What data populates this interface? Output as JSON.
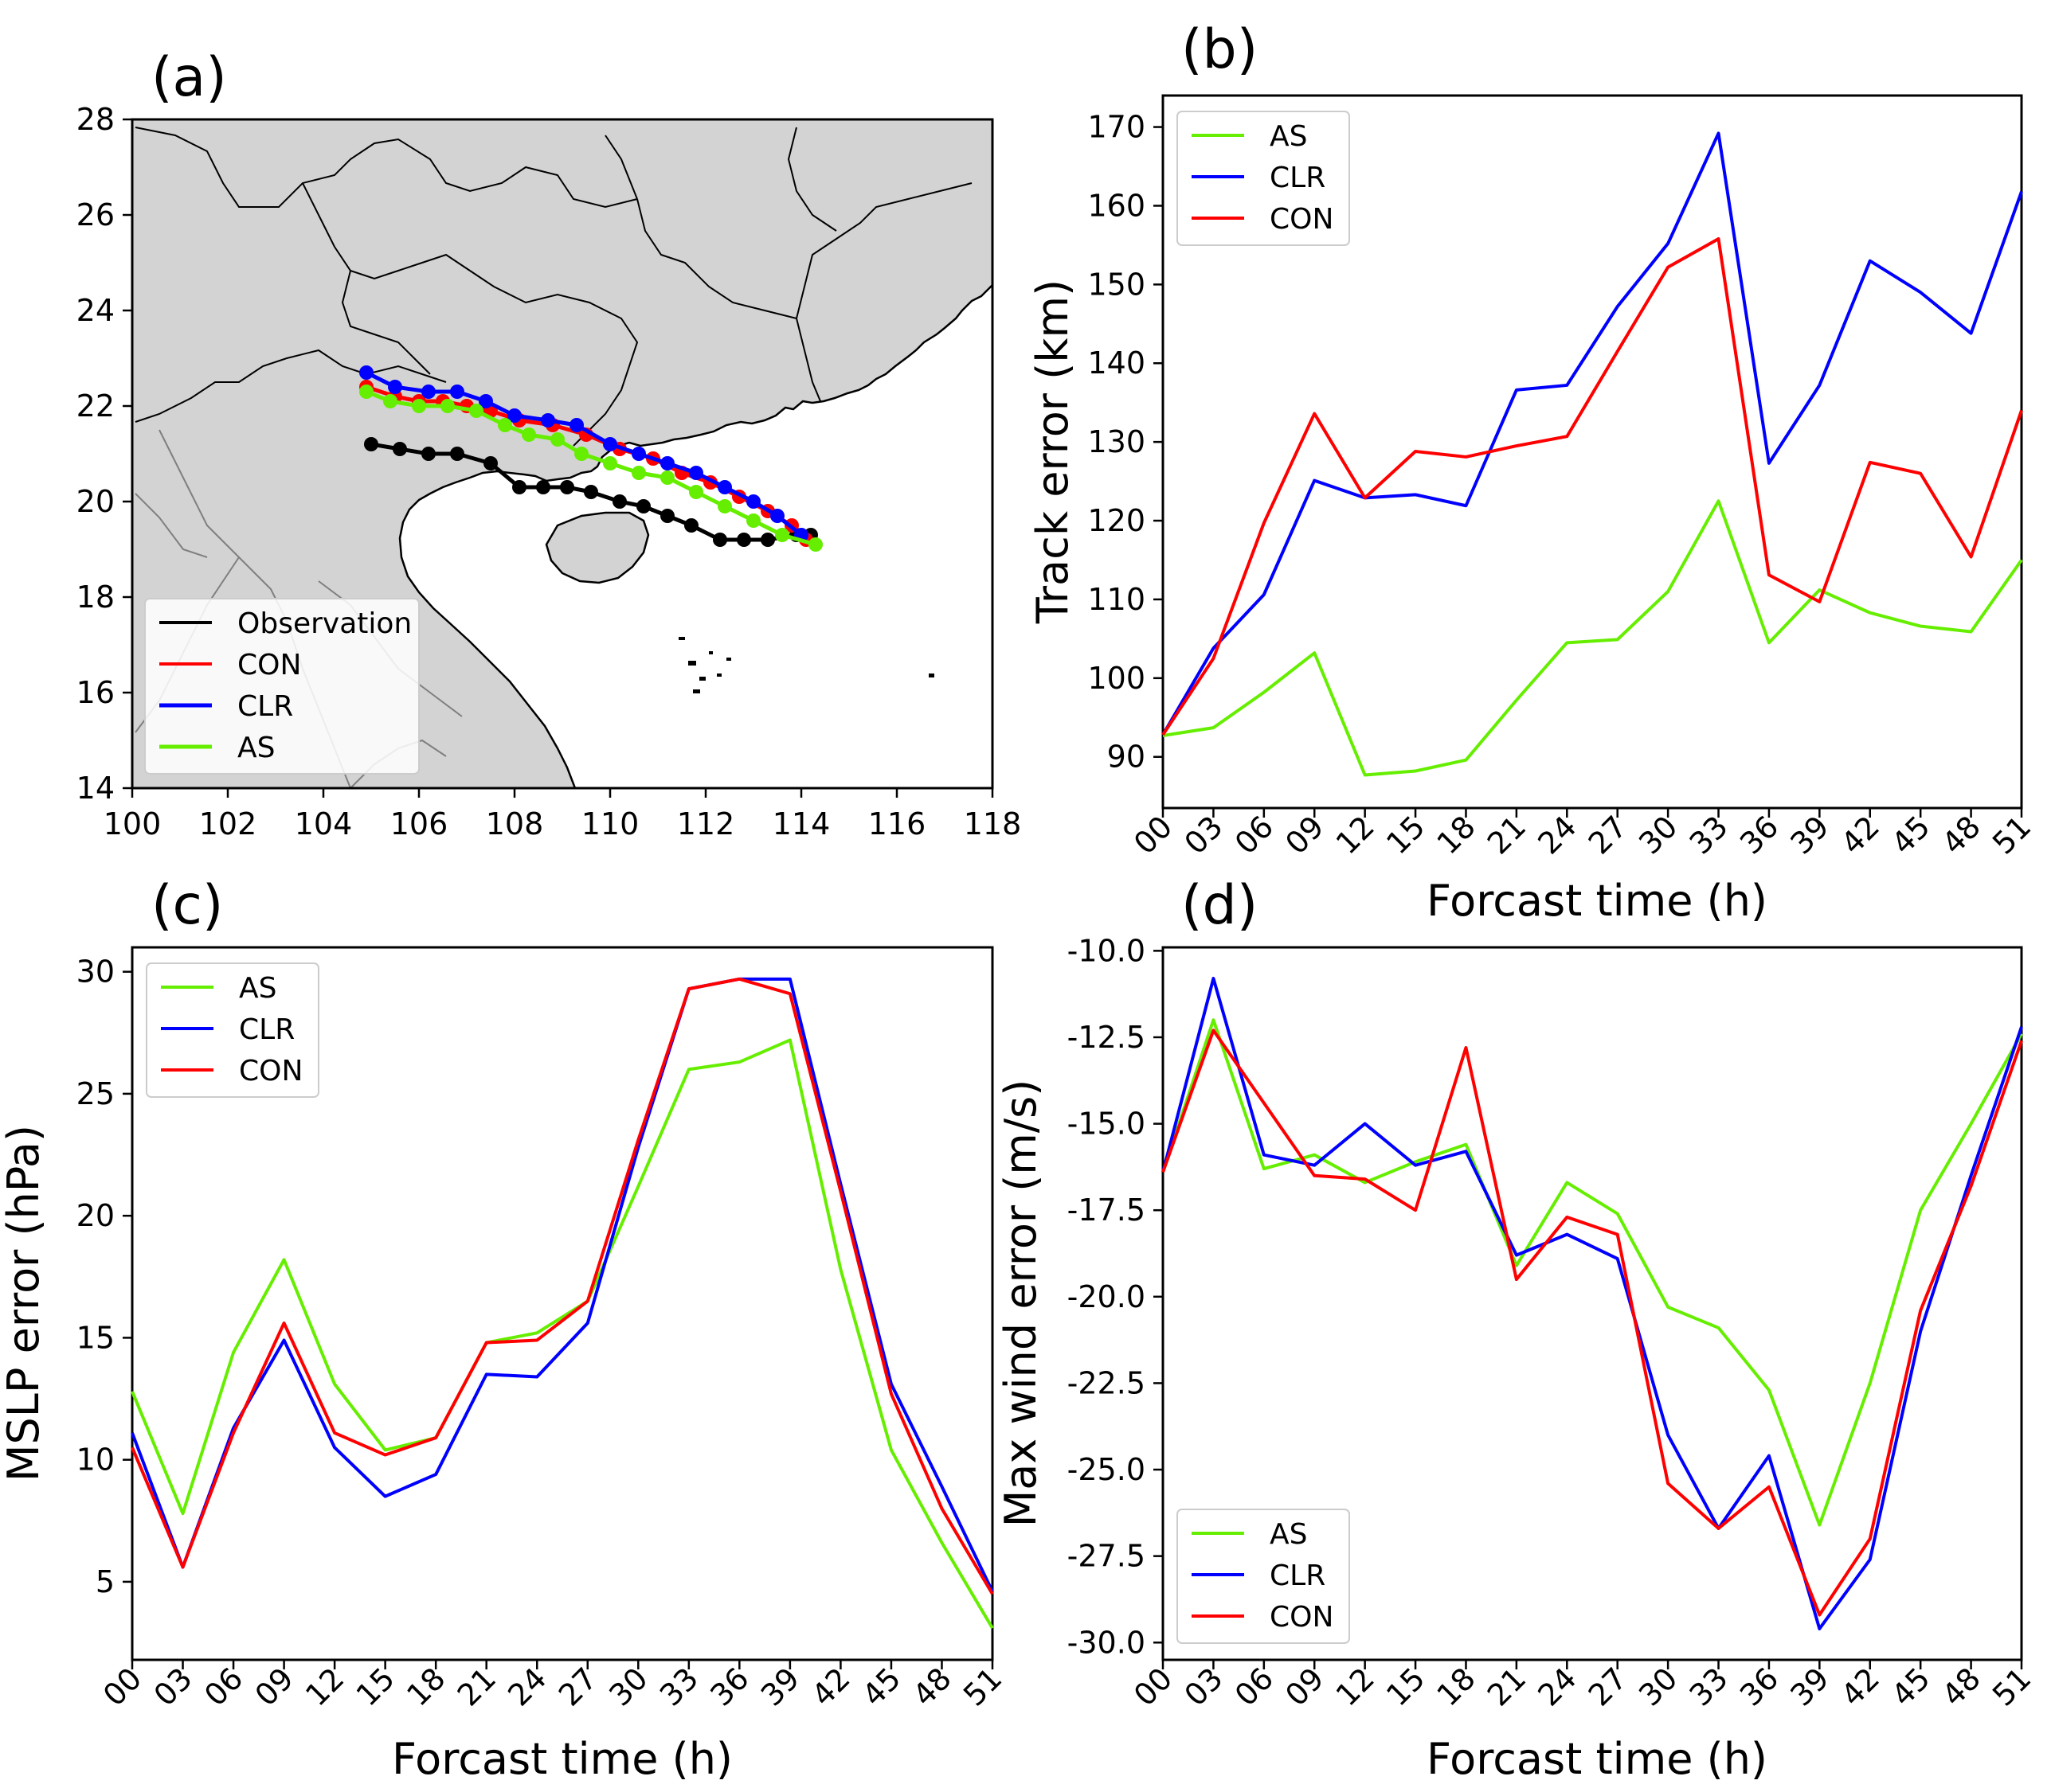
{
  "chart_data": [
    {
      "id": "a",
      "panel_label": "(a)",
      "type": "line",
      "title": "",
      "xlabel": "",
      "ylabel": "",
      "xlim": [
        100,
        118
      ],
      "ylim": [
        14,
        28
      ],
      "xticks": [
        "100",
        "102",
        "104",
        "106",
        "108",
        "110",
        "112",
        "114",
        "116",
        "118"
      ],
      "yticks": [
        "14",
        "16",
        "18",
        "20",
        "22",
        "24",
        "26",
        "28"
      ],
      "legend_position": "lower-left",
      "series": [
        {
          "name": "Observation",
          "color": "#000000",
          "x": [
            105.0,
            105.6,
            106.2,
            106.8,
            107.5,
            108.1,
            108.6,
            109.1,
            109.6,
            110.2,
            110.7,
            111.2,
            111.7,
            112.3,
            112.8,
            113.3,
            113.9,
            114.2
          ],
          "y": [
            21.2,
            21.1,
            21.0,
            21.0,
            20.8,
            20.3,
            20.3,
            20.3,
            20.2,
            20.0,
            19.9,
            19.7,
            19.5,
            19.2,
            19.2,
            19.2,
            19.3,
            19.3
          ]
        },
        {
          "name": "CON",
          "color": "#ff0000",
          "x": [
            104.9,
            105.5,
            106.0,
            106.5,
            107.0,
            107.5,
            108.1,
            108.8,
            109.5,
            110.2,
            110.9,
            111.5,
            112.1,
            112.7,
            113.3,
            113.8,
            114.1
          ],
          "y": [
            22.4,
            22.2,
            22.1,
            22.1,
            22.0,
            21.9,
            21.7,
            21.6,
            21.4,
            21.1,
            20.9,
            20.6,
            20.4,
            20.1,
            19.8,
            19.5,
            19.2
          ]
        },
        {
          "name": "CLR",
          "color": "#0000ff",
          "x": [
            104.9,
            105.5,
            106.2,
            106.8,
            107.4,
            108.0,
            108.7,
            109.3,
            110.0,
            110.6,
            111.2,
            111.8,
            112.4,
            113.0,
            113.5,
            114.0
          ],
          "y": [
            22.7,
            22.4,
            22.3,
            22.3,
            22.1,
            21.8,
            21.7,
            21.6,
            21.2,
            21.0,
            20.8,
            20.6,
            20.3,
            20.0,
            19.7,
            19.3
          ]
        },
        {
          "name": "AS",
          "color": "#66ee00",
          "x": [
            104.9,
            105.4,
            106.0,
            106.6,
            107.2,
            107.8,
            108.3,
            108.9,
            109.4,
            110.0,
            110.6,
            111.2,
            111.8,
            112.4,
            113.0,
            113.6,
            114.3
          ],
          "y": [
            22.3,
            22.1,
            22.0,
            22.0,
            21.9,
            21.6,
            21.4,
            21.3,
            21.0,
            20.8,
            20.6,
            20.5,
            20.2,
            19.9,
            19.6,
            19.3,
            19.1
          ]
        }
      ]
    },
    {
      "id": "b",
      "panel_label": "(b)",
      "type": "line",
      "title": "",
      "xlabel": "Forcast time (h)",
      "ylabel": "Track error (km)",
      "categories": [
        "00",
        "03",
        "06",
        "09",
        "12",
        "15",
        "18",
        "21",
        "24",
        "27",
        "30",
        "33",
        "36",
        "39",
        "42",
        "45",
        "48",
        "51"
      ],
      "ylim": [
        83.5,
        174
      ],
      "yticks": [
        90,
        100,
        110,
        120,
        130,
        140,
        150,
        160,
        170
      ],
      "legend_position": "top-left",
      "series": [
        {
          "name": "AS",
          "color": "#66ee00",
          "values": [
            92.7,
            93.7,
            98.2,
            103.2,
            87.7,
            88.2,
            89.6,
            97.2,
            104.5,
            104.9,
            111.0,
            122.5,
            104.5,
            111.2,
            108.3,
            106.6,
            105.9,
            115.0
          ]
        },
        {
          "name": "CLR",
          "color": "#0000ff",
          "values": [
            92.8,
            103.8,
            110.6,
            125.1,
            122.9,
            123.3,
            121.9,
            136.6,
            137.2,
            147.2,
            155.2,
            169.2,
            127.3,
            137.2,
            153.0,
            149.0,
            143.8,
            161.8
          ]
        },
        {
          "name": "CON",
          "color": "#ff0000",
          "values": [
            92.8,
            102.5,
            119.7,
            133.6,
            122.9,
            128.8,
            128.1,
            129.5,
            130.7,
            141.5,
            152.2,
            155.8,
            113.1,
            109.7,
            127.4,
            126.0,
            115.4,
            134.0
          ]
        }
      ]
    },
    {
      "id": "c",
      "panel_label": "(c)",
      "type": "line",
      "title": "",
      "xlabel": "Forcast time (h)",
      "ylabel": "MSLP error (hPa)",
      "categories": [
        "00",
        "03",
        "06",
        "09",
        "12",
        "15",
        "18",
        "21",
        "24",
        "27",
        "30",
        "33",
        "36",
        "39",
        "42",
        "45",
        "48",
        "51"
      ],
      "ylim": [
        1.8,
        31.0
      ],
      "yticks": [
        5,
        10,
        15,
        20,
        25,
        30
      ],
      "legend_position": "top-left",
      "series": [
        {
          "name": "AS",
          "color": "#66ee00",
          "values": [
            12.8,
            7.8,
            14.4,
            18.2,
            13.1,
            10.4,
            10.9,
            14.8,
            15.2,
            16.5,
            21.2,
            26.0,
            26.3,
            27.2,
            17.8,
            10.4,
            6.6,
            3.1
          ]
        },
        {
          "name": "CLR",
          "color": "#0000ff",
          "values": [
            11.1,
            5.6,
            11.3,
            14.9,
            10.5,
            8.5,
            9.4,
            13.5,
            13.4,
            15.6,
            22.8,
            29.3,
            29.7,
            29.7,
            21.3,
            13.1,
            8.9,
            4.6
          ]
        },
        {
          "name": "CON",
          "color": "#ff0000",
          "values": [
            10.5,
            5.6,
            11.1,
            15.6,
            11.1,
            10.2,
            10.9,
            14.8,
            14.9,
            16.5,
            23.1,
            29.3,
            29.7,
            29.1,
            21.0,
            12.7,
            8.0,
            4.5
          ]
        }
      ]
    },
    {
      "id": "d",
      "panel_label": "(d)",
      "type": "line",
      "title": "",
      "xlabel": "Forcast time (h)",
      "ylabel": "Max wind error (m/s)",
      "categories": [
        "00",
        "03",
        "06",
        "09",
        "12",
        "15",
        "18",
        "21",
        "24",
        "27",
        "30",
        "33",
        "36",
        "39",
        "42",
        "45",
        "48",
        "51"
      ],
      "ylim": [
        -30.5,
        -9.9
      ],
      "yticks": [
        "-10.0",
        "-12.5",
        "-15.0",
        "-17.5",
        "-20.0",
        "-22.5",
        "-25.0",
        "-27.5",
        "-30.0"
      ],
      "legend_position": "bottom-left",
      "series": [
        {
          "name": "AS",
          "color": "#66ee00",
          "values": [
            -16.4,
            -12.0,
            -16.3,
            -15.9,
            -16.7,
            -16.1,
            -15.6,
            -19.1,
            -16.7,
            -17.6,
            -20.3,
            -20.9,
            -22.7,
            -26.6,
            -22.5,
            -17.5,
            -15.0,
            -12.4
          ]
        },
        {
          "name": "CLR",
          "color": "#0000ff",
          "values": [
            -16.4,
            -10.8,
            -15.9,
            -16.2,
            -15.0,
            -16.2,
            -15.8,
            -18.8,
            -18.2,
            -18.9,
            -24.0,
            -26.7,
            -24.6,
            -29.6,
            -27.6,
            -21.0,
            -16.5,
            -12.2
          ]
        },
        {
          "name": "CON",
          "color": "#ff0000",
          "values": [
            -16.4,
            -12.3,
            -14.4,
            -16.5,
            -16.6,
            -17.5,
            -12.8,
            -19.5,
            -17.7,
            -18.2,
            -25.4,
            -26.7,
            -25.5,
            -29.2,
            -27.0,
            -20.4,
            -16.8,
            -12.6
          ]
        }
      ]
    }
  ]
}
